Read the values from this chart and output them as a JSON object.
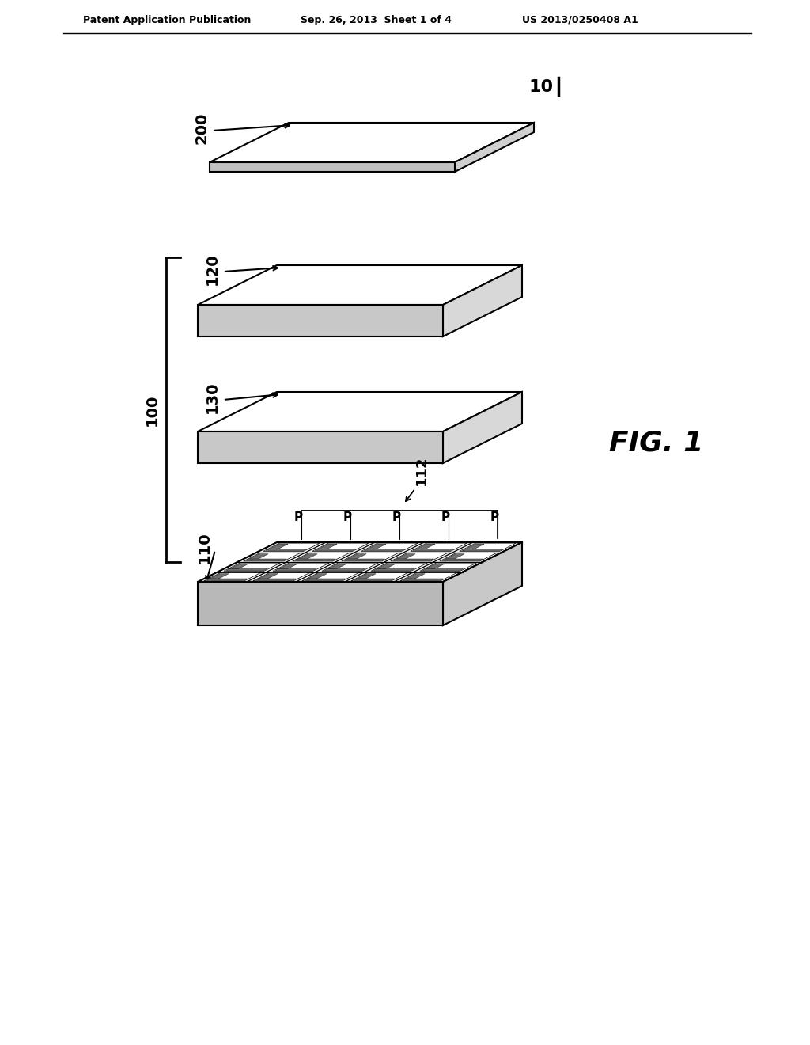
{
  "bg_color": "#ffffff",
  "line_color": "#000000",
  "header_left": "Patent Application Publication",
  "header_mid": "Sep. 26, 2013  Sheet 1 of 4",
  "header_right": "US 2013/0250408 A1",
  "fig_label": "FIG. 1",
  "label_10": "10",
  "label_200": "200",
  "label_120": "120",
  "label_100": "100",
  "label_130": "130",
  "label_110": "110",
  "label_112": "112",
  "label_P": "P"
}
